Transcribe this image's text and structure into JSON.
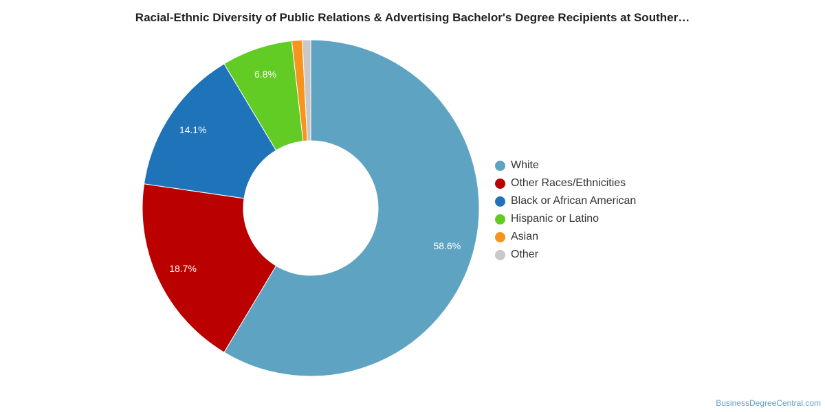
{
  "title": "Racial-Ethnic Diversity of Public Relations & Advertising Bachelor's Degree Recipients at Souther…",
  "watermark": "BusinessDegreeCentral.com",
  "chart_data": {
    "type": "pie",
    "donut": true,
    "legend_position": "right",
    "start": "top",
    "direction": "clockwise",
    "slices": [
      {
        "name": "White",
        "value": 58.6,
        "label": "58.6%",
        "color": "#5ea3c1"
      },
      {
        "name": "Other Races/Ethnicities",
        "value": 18.7,
        "label": "18.7%",
        "color": "#bb0000"
      },
      {
        "name": "Black or African American",
        "value": 14.1,
        "label": "14.1%",
        "color": "#1f73b8"
      },
      {
        "name": "Hispanic or Latino",
        "value": 6.8,
        "label": "6.8%",
        "color": "#62cc25"
      },
      {
        "name": "Asian",
        "value": 1.0,
        "label": "",
        "color": "#f7941d"
      },
      {
        "name": "Other",
        "value": 0.8,
        "label": "",
        "color": "#c8c8c8"
      }
    ]
  }
}
